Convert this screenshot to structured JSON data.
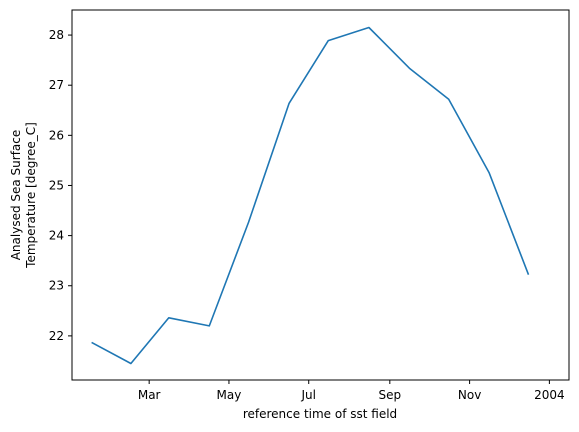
{
  "chart_data": {
    "type": "line",
    "title": "",
    "xlabel": "reference time of sst field",
    "ylabel_lines": [
      "Analysed Sea Surface",
      "Temperature [degree_C]"
    ],
    "x_tick_labels": [
      "Mar",
      "May",
      "Jul",
      "Sep",
      "Nov",
      "2004"
    ],
    "x_tick_dates": [
      "2003-03-01",
      "2003-05-01",
      "2003-07-01",
      "2003-09-01",
      "2003-11-01",
      "2004-01-01"
    ],
    "y_ticks": [
      22,
      23,
      24,
      25,
      26,
      27,
      28
    ],
    "x": [
      "2003-01-16",
      "2003-02-15",
      "2003-03-16",
      "2003-04-16",
      "2003-05-16",
      "2003-06-16",
      "2003-07-16",
      "2003-08-16",
      "2003-09-16",
      "2003-10-16",
      "2003-11-16",
      "2003-12-16"
    ],
    "series": [
      {
        "color": "#1f77b4",
        "values": [
          21.87,
          21.45,
          22.36,
          22.2,
          24.27,
          26.64,
          27.89,
          28.15,
          27.34,
          26.72,
          25.25,
          23.22
        ]
      }
    ],
    "xlim": [
      "2003-01-01",
      "2004-01-16"
    ],
    "ylim": [
      21.12,
      28.5
    ],
    "grid": false,
    "legend": "none"
  }
}
